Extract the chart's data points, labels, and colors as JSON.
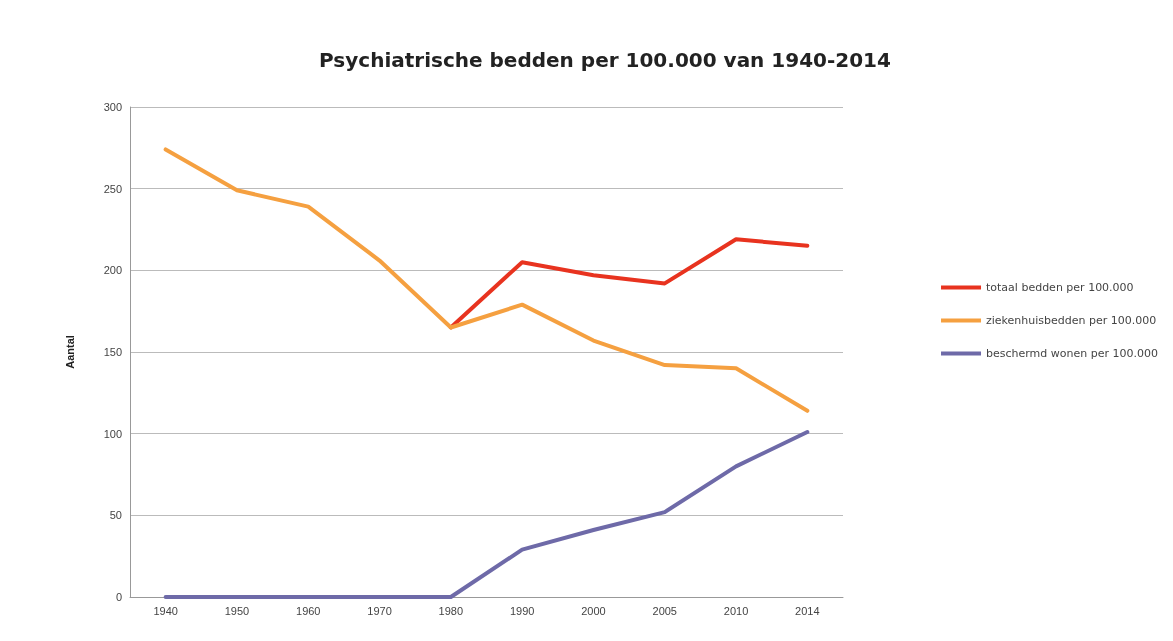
{
  "chart_data": {
    "type": "line",
    "title": "Psychiatrische bedden per 100.000 van 1940-2014",
    "ylabel": "Aantal",
    "categories": [
      "1940",
      "1950",
      "1960",
      "1970",
      "1980",
      "1990",
      "2000",
      "2005",
      "2010",
      "2014"
    ],
    "series": [
      {
        "name": "totaal bedden per 100.000",
        "color": "#e8331f",
        "values": [
          null,
          null,
          null,
          null,
          165,
          205,
          197,
          192,
          219,
          215
        ]
      },
      {
        "name": "ziekenhuisbedden per 100.000",
        "color": "#f5a040",
        "values": [
          274,
          249,
          239,
          206,
          165,
          179,
          157,
          142,
          140,
          114
        ]
      },
      {
        "name": "beschermd wonen per 100.000",
        "color": "#6e6aa8",
        "values": [
          0,
          0,
          0,
          0,
          0,
          29,
          41,
          52,
          80,
          101
        ]
      }
    ],
    "ylim": [
      0,
      300
    ],
    "yticks": [
      0,
      50,
      100,
      150,
      200,
      250,
      300
    ],
    "grid": "y",
    "legend": "right",
    "marker": "none",
    "line_style": "solid"
  }
}
